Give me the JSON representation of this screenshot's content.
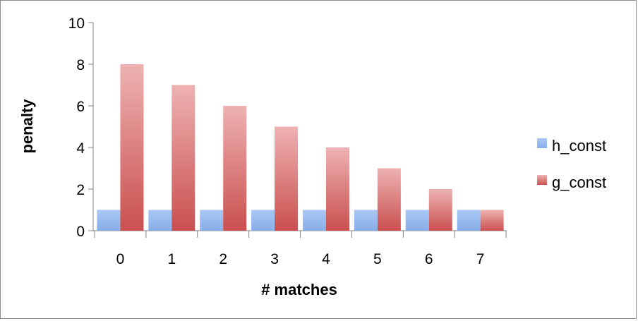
{
  "chart_data": {
    "type": "bar",
    "title": "",
    "xlabel": "# matches",
    "ylabel": "penalty",
    "categories": [
      "0",
      "1",
      "2",
      "3",
      "4",
      "5",
      "6",
      "7"
    ],
    "series": [
      {
        "name": "h_const",
        "values": [
          1,
          1,
          1,
          1,
          1,
          1,
          1,
          1
        ],
        "color": "#8fb4ec"
      },
      {
        "name": "g_const",
        "values": [
          8,
          7,
          6,
          5,
          4,
          3,
          2,
          1
        ],
        "color": "#d96a68"
      }
    ],
    "ylim": [
      0,
      10
    ],
    "yticks": [
      "0",
      "2",
      "4",
      "6",
      "8",
      "10"
    ],
    "grid": false,
    "legend_position": "right"
  }
}
